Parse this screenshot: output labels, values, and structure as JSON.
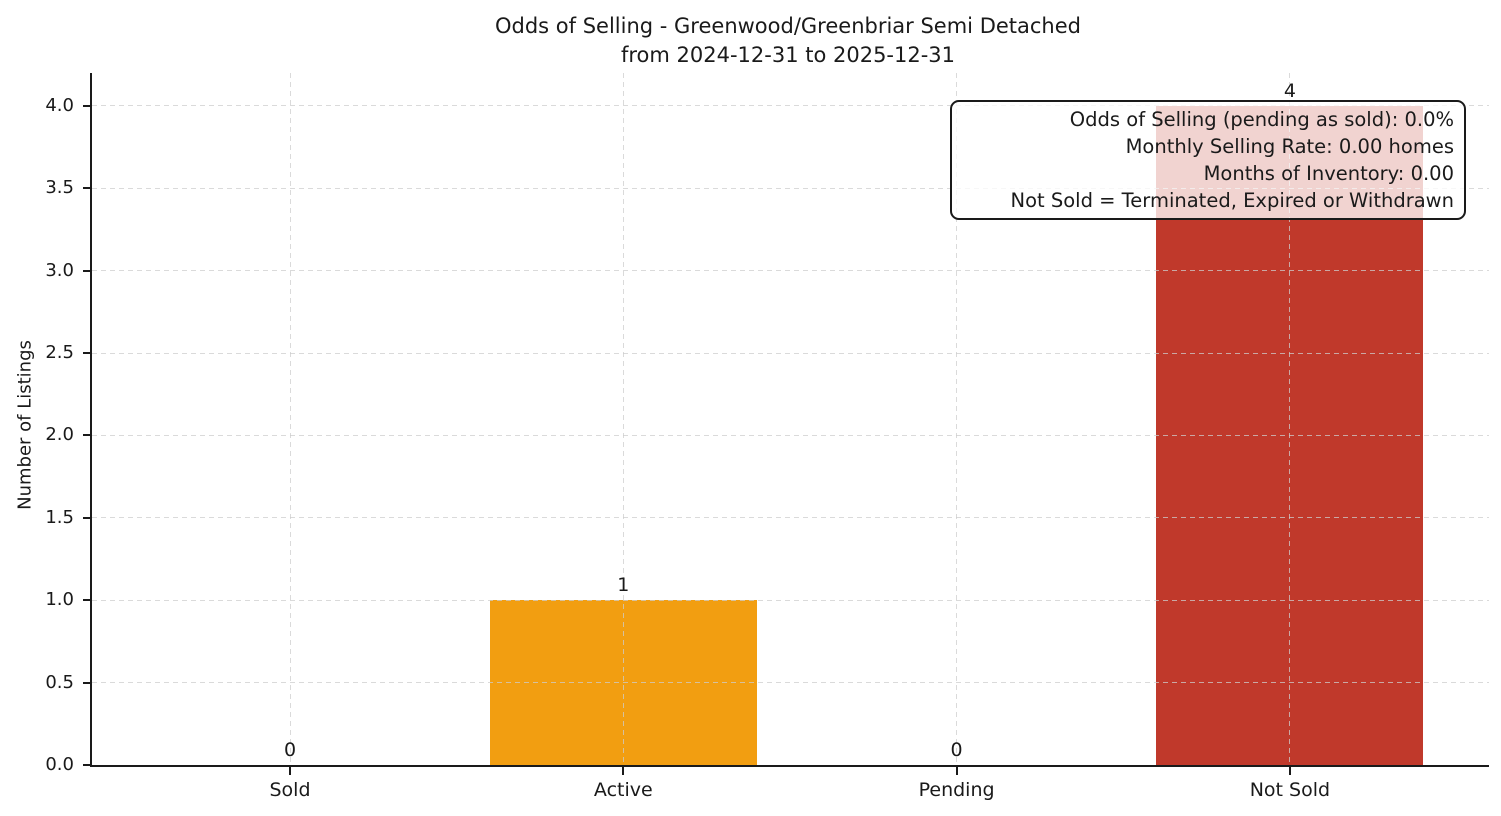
{
  "figure": {
    "title_line1": "Odds of Selling - Greenwood/Greenbriar Semi Detached",
    "title_line2": "from 2024-12-31 to 2025-12-31"
  },
  "chart_data": {
    "type": "bar",
    "title": "Odds of Selling - Greenwood/Greenbriar Semi Detached",
    "subtitle": "from 2024-12-31 to 2025-12-31",
    "categories": [
      "Sold",
      "Active",
      "Pending",
      "Not Sold"
    ],
    "values": [
      0,
      1,
      0,
      4
    ],
    "bar_value_labels": [
      "0",
      "1",
      "0",
      "4"
    ],
    "bar_colors": [
      null,
      "#f29e11",
      null,
      "#c0392b"
    ],
    "xlabel": "",
    "ylabel": "Number of Listings",
    "ylim": [
      0,
      4.2
    ],
    "ytick_values": [
      0.0,
      0.5,
      1.0,
      1.5,
      2.0,
      2.5,
      3.0,
      3.5,
      4.0
    ],
    "ytick_labels": [
      "0.0",
      "0.5",
      "1.0",
      "1.5",
      "2.0",
      "2.5",
      "3.0",
      "3.5",
      "4.0"
    ],
    "grid": "dashed, horizontal and vertical, light gray",
    "legend_position": "none",
    "axis_color": "#1a1a1a",
    "annotation": {
      "position": "top-right",
      "text_align": "right",
      "lines": [
        "Odds of Selling (pending as sold): 0.0%",
        "Monthly Selling Rate: 0.00 homes",
        "Months of Inventory: 0.00",
        "Not Sold = Terminated, Expired or Withdrawn"
      ]
    }
  }
}
